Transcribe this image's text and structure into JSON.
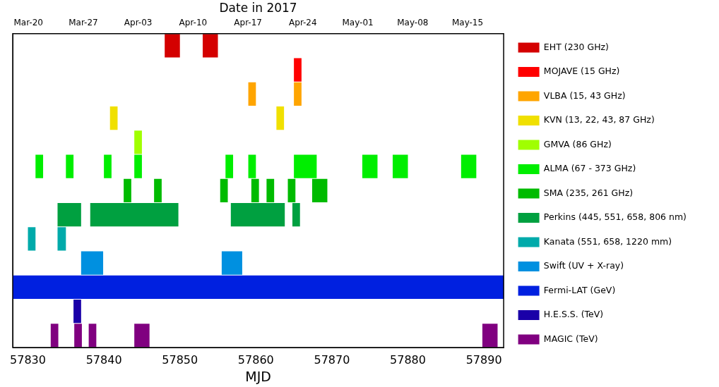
{
  "chart_data": {
    "type": "bar",
    "orientation": "horizontal",
    "xlabel": "MJD",
    "x2label": "Date in 2017",
    "legend": "right",
    "categories": [
      null,
      null,
      null,
      null,
      null,
      null,
      null,
      null,
      null,
      null,
      null,
      null,
      null
    ],
    "series": [
      {
        "name": "EHT (230 GHz)",
        "color": "#d40000",
        "base": [
          57848,
          null,
          null,
          null,
          null,
          null,
          null,
          null,
          null,
          null,
          null,
          null,
          null
        ],
        "values": [
          2,
          null,
          null,
          null,
          null,
          null,
          null,
          null,
          null,
          null,
          null,
          null,
          null
        ]
      },
      {
        "color": "#d40000",
        "base": [
          57853,
          null,
          null,
          null,
          null,
          null,
          null,
          null,
          null,
          null,
          null,
          null,
          null
        ],
        "values": [
          2,
          null,
          null,
          null,
          null,
          null,
          null,
          null,
          null,
          null,
          null,
          null,
          null
        ]
      },
      {
        "name": "MOJAVE (15 GHz)",
        "color": "#ff0000",
        "base": [
          null,
          57865,
          null,
          null,
          null,
          null,
          null,
          null,
          null,
          null,
          null,
          null,
          null
        ],
        "values": [
          null,
          1,
          null,
          null,
          null,
          null,
          null,
          null,
          null,
          null,
          null,
          null,
          null
        ]
      },
      {
        "name": "VLBA (15, 43 GHz)",
        "color": "#ffa500",
        "base": [
          null,
          null,
          57859,
          null,
          null,
          null,
          null,
          null,
          null,
          null,
          null,
          null,
          null
        ],
        "values": [
          null,
          null,
          1,
          null,
          null,
          null,
          null,
          null,
          null,
          null,
          null,
          null,
          null
        ]
      },
      {
        "color": "#ffa500",
        "base": [
          null,
          null,
          57865,
          null,
          null,
          null,
          null,
          null,
          null,
          null,
          null,
          null,
          null
        ],
        "values": [
          null,
          null,
          1,
          null,
          null,
          null,
          null,
          null,
          null,
          null,
          null,
          null,
          null
        ]
      },
      {
        "name": "KVN (13, 22, 43, 87 GHz)",
        "color": "#f0e000",
        "base": [
          null,
          null,
          null,
          57840.8,
          null,
          null,
          null,
          null,
          null,
          null,
          null,
          null,
          null
        ],
        "values": [
          null,
          null,
          null,
          1,
          null,
          null,
          null,
          null,
          null,
          null,
          null,
          null,
          null
        ]
      },
      {
        "color": "#f0e000",
        "base": [
          null,
          null,
          null,
          57862.7,
          null,
          null,
          null,
          null,
          null,
          null,
          null,
          null,
          null
        ],
        "values": [
          null,
          null,
          null,
          1,
          null,
          null,
          null,
          null,
          null,
          null,
          null,
          null,
          null
        ]
      },
      {
        "name": "GMVA (86 GHz)",
        "color": "#a0ff00",
        "base": [
          null,
          null,
          null,
          null,
          57844,
          null,
          null,
          null,
          null,
          null,
          null,
          null,
          null
        ],
        "values": [
          null,
          null,
          null,
          null,
          1,
          null,
          null,
          null,
          null,
          null,
          null,
          null,
          null
        ]
      },
      {
        "name": "ALMA (67 - 373 GHz)",
        "color": "#00ee00",
        "base": [
          null,
          null,
          null,
          null,
          null,
          57831,
          null,
          null,
          null,
          null,
          null,
          null,
          null
        ],
        "values": [
          null,
          null,
          null,
          null,
          null,
          1,
          null,
          null,
          null,
          null,
          null,
          null,
          null
        ]
      },
      {
        "color": "#00ee00",
        "base": [
          null,
          null,
          null,
          null,
          null,
          57835,
          null,
          null,
          null,
          null,
          null,
          null,
          null
        ],
        "values": [
          null,
          null,
          null,
          null,
          null,
          1,
          null,
          null,
          null,
          null,
          null,
          null,
          null
        ]
      },
      {
        "color": "#00ee00",
        "base": [
          null,
          null,
          null,
          null,
          null,
          57840,
          null,
          null,
          null,
          null,
          null,
          null,
          null
        ],
        "values": [
          null,
          null,
          null,
          null,
          null,
          1,
          null,
          null,
          null,
          null,
          null,
          null,
          null
        ]
      },
      {
        "color": "#00ee00",
        "base": [
          null,
          null,
          null,
          null,
          null,
          57844,
          null,
          null,
          null,
          null,
          null,
          null,
          null
        ],
        "values": [
          null,
          null,
          null,
          null,
          null,
          1,
          null,
          null,
          null,
          null,
          null,
          null,
          null
        ]
      },
      {
        "color": "#00ee00",
        "base": [
          null,
          null,
          null,
          null,
          null,
          57856,
          null,
          null,
          null,
          null,
          null,
          null,
          null
        ],
        "values": [
          null,
          null,
          null,
          null,
          null,
          1,
          null,
          null,
          null,
          null,
          null,
          null,
          null
        ]
      },
      {
        "color": "#00ee00",
        "base": [
          null,
          null,
          null,
          null,
          null,
          57859,
          null,
          null,
          null,
          null,
          null,
          null,
          null
        ],
        "values": [
          null,
          null,
          null,
          null,
          null,
          1,
          null,
          null,
          null,
          null,
          null,
          null,
          null
        ]
      },
      {
        "color": "#00ee00",
        "base": [
          null,
          null,
          null,
          null,
          null,
          57865,
          null,
          null,
          null,
          null,
          null,
          null,
          null
        ],
        "values": [
          null,
          null,
          null,
          null,
          null,
          3,
          null,
          null,
          null,
          null,
          null,
          null,
          null
        ]
      },
      {
        "color": "#00ee00",
        "base": [
          null,
          null,
          null,
          null,
          null,
          57874,
          null,
          null,
          null,
          null,
          null,
          null,
          null
        ],
        "values": [
          null,
          null,
          null,
          null,
          null,
          2,
          null,
          null,
          null,
          null,
          null,
          null,
          null
        ]
      },
      {
        "color": "#00ee00",
        "base": [
          null,
          null,
          null,
          null,
          null,
          57878,
          null,
          null,
          null,
          null,
          null,
          null,
          null
        ],
        "values": [
          null,
          null,
          null,
          null,
          null,
          2,
          null,
          null,
          null,
          null,
          null,
          null,
          null
        ]
      },
      {
        "color": "#00ee00",
        "base": [
          null,
          null,
          null,
          null,
          null,
          57887,
          null,
          null,
          null,
          null,
          null,
          null,
          null
        ],
        "values": [
          null,
          null,
          null,
          null,
          null,
          2,
          null,
          null,
          null,
          null,
          null,
          null,
          null
        ]
      },
      {
        "name": "SMA (235, 261 GHz)",
        "color": "#00bb00",
        "base": [
          null,
          null,
          null,
          null,
          null,
          null,
          57842.6,
          null,
          null,
          null,
          null,
          null,
          null
        ],
        "values": [
          null,
          null,
          null,
          null,
          null,
          null,
          1,
          null,
          null,
          null,
          null,
          null,
          null
        ]
      },
      {
        "color": "#00bb00",
        "base": [
          null,
          null,
          null,
          null,
          null,
          null,
          57846.6,
          null,
          null,
          null,
          null,
          null,
          null
        ],
        "values": [
          null,
          null,
          null,
          null,
          null,
          null,
          1,
          null,
          null,
          null,
          null,
          null,
          null
        ]
      },
      {
        "color": "#00bb00",
        "base": [
          null,
          null,
          null,
          null,
          null,
          null,
          57855.3,
          null,
          null,
          null,
          null,
          null,
          null
        ],
        "values": [
          null,
          null,
          null,
          null,
          null,
          null,
          1,
          null,
          null,
          null,
          null,
          null,
          null
        ]
      },
      {
        "color": "#00bb00",
        "base": [
          null,
          null,
          null,
          null,
          null,
          null,
          57859.4,
          null,
          null,
          null,
          null,
          null,
          null
        ],
        "values": [
          null,
          null,
          null,
          null,
          null,
          null,
          1,
          null,
          null,
          null,
          null,
          null,
          null
        ]
      },
      {
        "color": "#00bb00",
        "base": [
          null,
          null,
          null,
          null,
          null,
          null,
          57861.4,
          null,
          null,
          null,
          null,
          null,
          null
        ],
        "values": [
          null,
          null,
          null,
          null,
          null,
          null,
          1,
          null,
          null,
          null,
          null,
          null,
          null
        ]
      },
      {
        "color": "#00bb00",
        "base": [
          null,
          null,
          null,
          null,
          null,
          null,
          57864.2,
          null,
          null,
          null,
          null,
          null,
          null
        ],
        "values": [
          null,
          null,
          null,
          null,
          null,
          null,
          1,
          null,
          null,
          null,
          null,
          null,
          null
        ]
      },
      {
        "color": "#00bb00",
        "base": [
          null,
          null,
          null,
          null,
          null,
          null,
          57867.4,
          null,
          null,
          null,
          null,
          null,
          null
        ],
        "values": [
          null,
          null,
          null,
          null,
          null,
          null,
          2,
          null,
          null,
          null,
          null,
          null,
          null
        ]
      },
      {
        "name": "Perkins (445, 551, 658, 806 nm)",
        "color": "#00a040",
        "base": [
          null,
          null,
          null,
          null,
          null,
          null,
          null,
          57833.9,
          null,
          null,
          null,
          null,
          null
        ],
        "values": [
          null,
          null,
          null,
          null,
          null,
          null,
          null,
          3.1,
          null,
          null,
          null,
          null,
          null
        ]
      },
      {
        "color": "#00a040",
        "base": [
          null,
          null,
          null,
          null,
          null,
          null,
          null,
          57838.2,
          null,
          null,
          null,
          null,
          null
        ],
        "values": [
          null,
          null,
          null,
          null,
          null,
          null,
          null,
          11.6,
          null,
          null,
          null,
          null,
          null
        ]
      },
      {
        "color": "#00a040",
        "base": [
          null,
          null,
          null,
          null,
          null,
          null,
          null,
          57856.7,
          null,
          null,
          null,
          null,
          null
        ],
        "values": [
          null,
          null,
          null,
          null,
          null,
          null,
          null,
          7.1,
          null,
          null,
          null,
          null,
          null
        ]
      },
      {
        "color": "#00a040",
        "base": [
          null,
          null,
          null,
          null,
          null,
          null,
          null,
          57864.8,
          null,
          null,
          null,
          null,
          null
        ],
        "values": [
          null,
          null,
          null,
          null,
          null,
          null,
          null,
          1,
          null,
          null,
          null,
          null,
          null
        ]
      },
      {
        "name": "Kanata (551, 658, 1220 mm)",
        "color": "#00aaaa",
        "base": [
          null,
          null,
          null,
          null,
          null,
          null,
          null,
          null,
          57830,
          null,
          null,
          null,
          null
        ],
        "values": [
          null,
          null,
          null,
          null,
          null,
          null,
          null,
          null,
          1,
          null,
          null,
          null,
          null
        ]
      },
      {
        "color": "#00aaaa",
        "base": [
          null,
          null,
          null,
          null,
          null,
          null,
          null,
          null,
          57833.9,
          null,
          null,
          null,
          null
        ],
        "values": [
          null,
          null,
          null,
          null,
          null,
          null,
          null,
          null,
          1.1,
          null,
          null,
          null,
          null
        ]
      },
      {
        "name": "Swift (UV + X-ray)",
        "color": "#0090e0",
        "base": [
          null,
          null,
          null,
          null,
          null,
          null,
          null,
          null,
          null,
          57837,
          null,
          null,
          null
        ],
        "values": [
          null,
          null,
          null,
          null,
          null,
          null,
          null,
          null,
          null,
          2.9,
          null,
          null,
          null
        ]
      },
      {
        "color": "#0090e0",
        "base": [
          null,
          null,
          null,
          null,
          null,
          null,
          null,
          null,
          null,
          57855.5,
          null,
          null,
          null
        ],
        "values": [
          null,
          null,
          null,
          null,
          null,
          null,
          null,
          null,
          null,
          2.7,
          null,
          null,
          null
        ]
      },
      {
        "name": "Fermi-LAT (GeV)",
        "color": "#0020e0",
        "base": [
          null,
          null,
          null,
          null,
          null,
          null,
          null,
          null,
          null,
          null,
          57828,
          null,
          null
        ],
        "values": [
          null,
          null,
          null,
          null,
          null,
          null,
          null,
          null,
          null,
          null,
          64.6,
          null,
          null
        ]
      },
      {
        "name": "H.E.S.S. (TeV)",
        "color": "#1a00a8",
        "base": [
          null,
          null,
          null,
          null,
          null,
          null,
          null,
          null,
          null,
          null,
          null,
          57836,
          null
        ],
        "values": [
          null,
          null,
          null,
          null,
          null,
          null,
          null,
          null,
          null,
          null,
          null,
          1,
          null
        ]
      },
      {
        "name": "MAGIC (TeV)",
        "color": "#800080",
        "base": [
          null,
          null,
          null,
          null,
          null,
          null,
          null,
          null,
          null,
          null,
          null,
          null,
          57833
        ],
        "values": [
          null,
          null,
          null,
          null,
          null,
          null,
          null,
          null,
          null,
          null,
          null,
          null,
          1
        ]
      },
      {
        "color": "#800080",
        "base": [
          null,
          null,
          null,
          null,
          null,
          null,
          null,
          null,
          null,
          null,
          null,
          null,
          57836.1
        ],
        "values": [
          null,
          null,
          null,
          null,
          null,
          null,
          null,
          null,
          null,
          null,
          null,
          null,
          1
        ]
      },
      {
        "color": "#800080",
        "base": [
          null,
          null,
          null,
          null,
          null,
          null,
          null,
          null,
          null,
          null,
          null,
          null,
          57838
        ],
        "values": [
          null,
          null,
          null,
          null,
          null,
          null,
          null,
          null,
          null,
          null,
          null,
          null,
          1
        ]
      },
      {
        "color": "#800080",
        "base": [
          null,
          null,
          null,
          null,
          null,
          null,
          null,
          null,
          null,
          null,
          null,
          null,
          57844
        ],
        "values": [
          null,
          null,
          null,
          null,
          null,
          null,
          null,
          null,
          null,
          null,
          null,
          null,
          2
        ]
      },
      {
        "color": "#800080",
        "base": [
          null,
          null,
          null,
          null,
          null,
          null,
          null,
          null,
          null,
          null,
          null,
          null,
          57889.8
        ],
        "values": [
          null,
          null,
          null,
          null,
          null,
          null,
          null,
          null,
          null,
          null,
          null,
          null,
          2
        ]
      }
    ],
    "xlim": [
      57828,
      57892.6
    ],
    "xticks": [
      57830,
      57840,
      57850,
      57860,
      57870,
      57880,
      57890
    ],
    "x2lim": [
      "--03-18",
      "--05-19T14:24"
    ],
    "x2ticks": [
      {
        "value": "--03-20",
        "label": "Mar-20"
      },
      {
        "value": "--03-27",
        "label": "Mar-27"
      },
      {
        "value": "--04-03",
        "label": "Apr-03"
      },
      {
        "value": "--04-10",
        "label": "Apr-10"
      },
      {
        "value": "--04-17",
        "label": "Apr-17"
      },
      {
        "value": "--04-24",
        "label": "Apr-24"
      },
      {
        "value": "--05-01",
        "label": "May-01"
      },
      {
        "value": "--05-08",
        "label": "May-08"
      },
      {
        "value": "--05-15",
        "label": "May-15"
      }
    ]
  }
}
